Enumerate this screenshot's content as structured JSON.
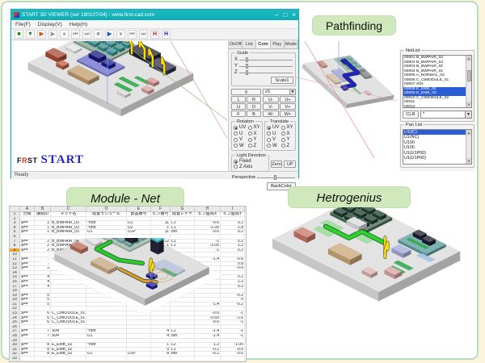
{
  "palette": {
    "frame_border": "#b9dcc0",
    "page_bg": "#fbf4dc",
    "titlebar": "#12b2ba",
    "tag_green": "#cfe9bd",
    "route_green": "#28cc28",
    "route_blue": "#2020cc",
    "wire_yellow": "#ffdf00",
    "selection_blue": "#2a5cd6",
    "logo_red": "#e03020",
    "logo_blue": "#2424c8"
  },
  "viewer_window": {
    "title": "START 3D VIEWER (ver 190107/04) : www.first-cad.com",
    "window_buttons": [
      {
        "name": "minimize-icon",
        "glyph": "–"
      },
      {
        "name": "maximize-icon",
        "glyph": "□"
      },
      {
        "name": "close-icon",
        "glyph": "×"
      }
    ],
    "menu": [
      "File(F)",
      "Display(V)",
      "Help(H)"
    ],
    "toolbar_icons": [
      {
        "name": "board-on-icon",
        "glyph": "■",
        "color": "#108a10"
      },
      {
        "name": "board-off-icon",
        "glyph": "▼",
        "color": "#108a10"
      },
      {
        "name": "record-icon",
        "glyph": "▶",
        "color": "#e05010"
      },
      {
        "name": "play-icon",
        "glyph": "▶",
        "color": "#9a9a9a"
      },
      {
        "name": "pause-icon",
        "glyph": "⏸",
        "color": "#9a9a9a"
      },
      {
        "name": "step-back-icon",
        "glyph": "⏮",
        "color": "#9a9a9a"
      },
      {
        "name": "step-forward-icon",
        "glyph": "⏭",
        "color": "#9a9a9a"
      },
      {
        "name": "stop-icon",
        "glyph": "■",
        "color": "#9a9a9a"
      },
      {
        "name": "route-play-icon",
        "glyph": "▶",
        "color": "#2050e0"
      },
      {
        "name": "route-pause-icon",
        "glyph": "⏸",
        "color": "#9a9a9a"
      },
      {
        "name": "route-step-back-icon",
        "glyph": "⏮",
        "color": "#9a9a9a"
      },
      {
        "name": "route-step-forward-icon",
        "glyph": "⏭",
        "color": "#9a9a9a"
      },
      {
        "name": "marker-red-icon",
        "glyph": "H",
        "color": "#d02020"
      },
      {
        "name": "marker-blue-icon",
        "glyph": "H",
        "color": "#2020d0"
      }
    ],
    "logo": {
      "first_f": "F",
      "first_r": "R",
      "first_rest": "ST",
      "start": "START"
    },
    "status": "Ready",
    "panel": {
      "tabs": [
        "OnOff",
        "List",
        "Com",
        "Play",
        "Mode"
      ],
      "active_tab": "Com",
      "scale": {
        "label": "Scale",
        "axes": [
          "X",
          "Y",
          "Z"
        ],
        "button": "Scale1"
      },
      "nav": {
        "home": "0",
        "pairs": [
          [
            "L",
            "R"
          ],
          [
            "U",
            "D"
          ],
          [
            "F",
            "B"
          ]
        ],
        "combo_value": "x5",
        "steps": [
          [
            "U-",
            "U+"
          ],
          [
            "V-",
            "V+"
          ],
          [
            "W-",
            "W+"
          ]
        ]
      },
      "rotation": {
        "label": "Rotation",
        "rows": [
          [
            "UV",
            "XY"
          ],
          [
            "U",
            "X"
          ],
          [
            "V",
            "Y"
          ],
          [
            "W",
            "Z"
          ]
        ],
        "selected": "UV"
      },
      "translate": {
        "label": "Translate",
        "rows": [
          [
            "UV",
            "XY"
          ],
          [
            "U",
            "X"
          ],
          [
            "V",
            "Y"
          ],
          [
            "W",
            "Z"
          ]
        ],
        "selected": "UV"
      },
      "light": {
        "label": "Light Direction",
        "options": [
          "Fixed",
          "Z Axis"
        ],
        "selected": "Fixed",
        "buttons": [
          "Zero",
          "UP"
        ]
      },
      "perspective_label": "Perspective",
      "backcolor_button": "BackColor"
    }
  },
  "pathfinding": {
    "label": "Pathfinding",
    "netlist": {
      "title": "NetList",
      "items": [
        "00001 B_BWPAIR_03",
        "00002 B_BWPAIR_04",
        "00003 B_BWPAIR_02",
        "00004 B_BWPAIR_01",
        "00005 A_NORMAL_03",
        "00006 C_CIMODULE_01",
        "00007 S04",
        "00008 E_EMB_02",
        "00009 E_EMB_03",
        "00010 C_CIMODULE_02",
        "00011",
        "00012",
        "00013 F_MODULE_02",
        "00014 F_MODULE_01",
        "00015 A_NORMAL_02",
        "00016 A_NORMAL_01"
      ],
      "selected_indices": [
        7,
        8
      ],
      "clr_button": "CLR",
      "filter_value": "*"
    },
    "panlist": {
      "title": "Pan List",
      "items": [
        "U1(IC)",
        "U1(NC)",
        "U100",
        "U100",
        "U1(U1P00)",
        "U1(U1P00)"
      ],
      "selected_index": 0
    }
  },
  "module_net": {
    "label": "Module - Net",
    "spreadsheet": {
      "col_letters": [
        "A",
        "B",
        "C",
        "D",
        "E",
        "F",
        "G",
        "H",
        "I"
      ],
      "headers": [
        "分類",
        "接続ID",
        "ネット名",
        "配置モジュール",
        "部品番号",
        "ピン番号",
        "配置レイヤ",
        "ピン座標X",
        "ピン座標Y"
      ],
      "row_count": 34,
      "highlight_row": 9,
      "rows": {
        "3": [
          "$==",
          "1",
          "B_BWPAIR_03",
          "*root",
          "U1",
          "11",
          "L1",
          "-9.6",
          "0.2"
        ],
        "4": [
          "$==",
          "1",
          "B_BWPAIR_03",
          "*root",
          "U2",
          "1",
          "L1",
          "-1.05",
          "1.8"
        ],
        "5": [
          "$==",
          "1",
          "B_BWPAIR_03",
          "U1",
          "U1P",
          "11",
          "bot",
          "-9.6",
          "0.2"
        ],
        "7": [
          "$==",
          "2",
          "B_BWPAIR_04",
          "*root",
          "",
          "12",
          "L1",
          "-1",
          "0.2"
        ],
        "8": [
          "$==",
          "2",
          "B_BWPAIR_04",
          "",
          "",
          "1",
          "L1",
          "-1.05",
          "1.2"
        ],
        "9": [
          "$==",
          "2",
          "B_BWPAIR_04",
          "",
          "",
          "",
          "",
          "-1",
          "0.2"
        ],
        "11": [
          "$==",
          "3",
          "B_BWPAIR_02",
          "",
          "",
          "",
          "",
          "-1.4",
          "-0.6"
        ],
        "12": [
          "$==",
          "3",
          "",
          "",
          "",
          "",
          "",
          "",
          "0.8"
        ],
        "13": [
          "$==",
          "3",
          "",
          "",
          "",
          "",
          "",
          "",
          "-0.6"
        ],
        "15": [
          "$==",
          "4",
          "",
          "",
          "",
          "",
          "",
          "",
          "0.2"
        ],
        "16": [
          "$==",
          "4",
          "",
          "",
          "",
          "",
          "",
          "",
          "1.2"
        ],
        "17": [
          "$==",
          "4",
          "",
          "",
          "",
          "",
          "",
          "",
          "0.2"
        ],
        "19": [
          "$==",
          "5",
          "",
          "",
          "",
          "",
          "",
          "",
          "-0.2"
        ],
        "20": [
          "$==",
          "5",
          "",
          "",
          "",
          "",
          "",
          "",
          "0"
        ],
        "21": [
          "$==",
          "5",
          "",
          "",
          "",
          "",
          "",
          "-1.4",
          "-0.2"
        ],
        "23": [
          "$==",
          "6",
          "C_CIMODULE_01",
          "",
          "",
          "",
          "",
          "-0.6",
          "-1"
        ],
        "24": [
          "$==",
          "6",
          "C_CIMODULE_01",
          "",
          "",
          "",
          "",
          "-0.65",
          "-1.6"
        ],
        "25": [
          "$==",
          "6",
          "C_CIMODULE_01",
          "",
          "",
          "",
          "",
          "-0.6",
          "-1"
        ],
        "27": [
          "$==",
          "7",
          "S04",
          "*root",
          "",
          "4",
          "L1",
          "-1.4",
          "-1"
        ],
        "28": [
          "$==",
          "7",
          "S04",
          "U1",
          "",
          "4",
          "bot",
          "-1.4",
          "-1"
        ],
        "30": [
          "$==",
          "8",
          "E_EMB_02",
          "*root",
          "",
          "1",
          "L2",
          "1.2",
          "-1.05"
        ],
        "31": [
          "$==",
          "8",
          "E_EMB_02",
          "",
          "",
          "9",
          "L1",
          "-0.2",
          "-0.6"
        ],
        "32": [
          "$==",
          "8",
          "E_EMB_02",
          "U1",
          "U1P",
          "8",
          "bot",
          "-0.2",
          "-0.6"
        ],
        "34": [
          "$==",
          "9",
          "E_EMB_03",
          "*root",
          "C14",
          "2",
          "L2",
          "1.2",
          "-1.45"
        ]
      }
    }
  },
  "hetrogenius": {
    "label": "Hetrogenius"
  }
}
